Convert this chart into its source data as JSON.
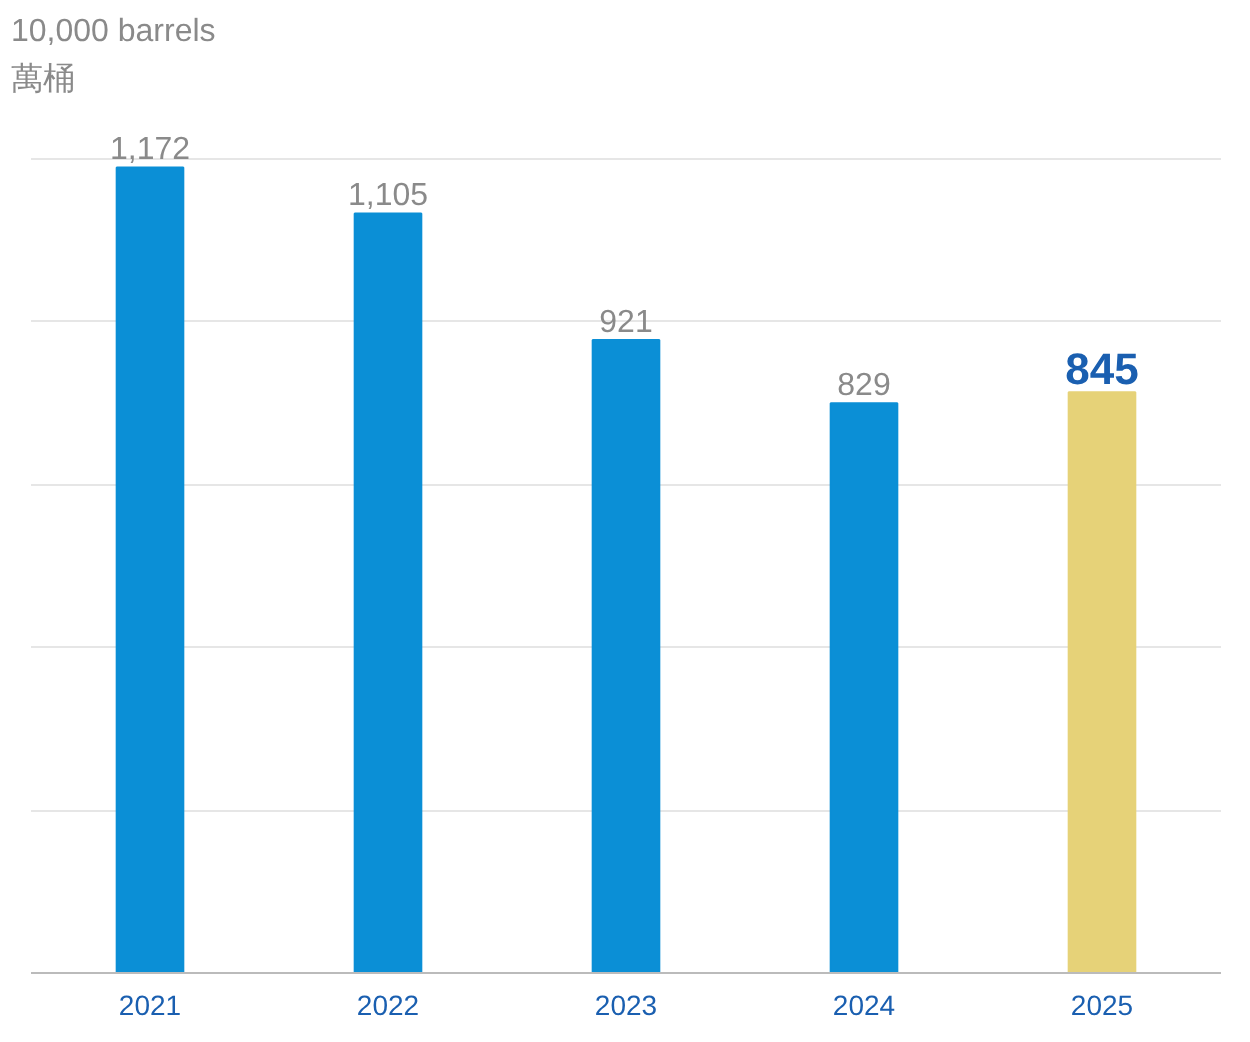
{
  "chart_data": {
    "type": "bar",
    "ylabel": "10,000 barrels\n萬桶",
    "categories": [
      "2021",
      "2022",
      "2023",
      "2024",
      "2025"
    ],
    "values": [
      1172,
      1105,
      921,
      829,
      845
    ],
    "colors": [
      "#0b8fd6",
      "#0b8fd6",
      "#0b8fd6",
      "#0b8fd6",
      "#e6d278"
    ],
    "yticks": [
      0,
      {
        "value": 237,
        "label": null
      },
      {
        "value": 474,
        "label": null
      },
      {
        "value": 711,
        "label": null
      },
      {
        "value": 948,
        "label": null
      },
      {
        "value": 1185,
        "label": null
      }
    ],
    "value_labels": [
      "1,172",
      "1,105",
      "921",
      "829",
      "845"
    ],
    "grid": "y",
    "tick_labels": "x"
  }
}
